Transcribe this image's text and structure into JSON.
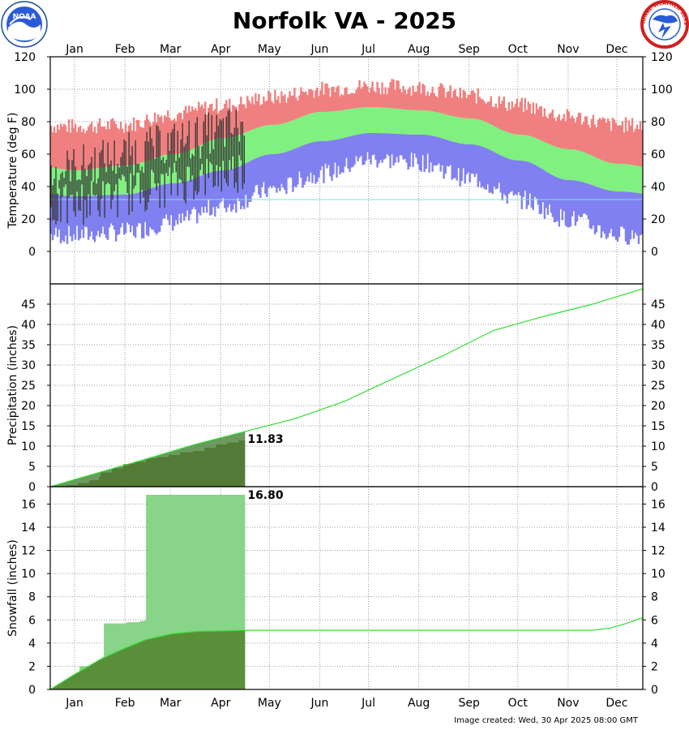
{
  "title": "Norfolk VA - 2025",
  "footer": "Image created: Wed, 30 Apr 2025 08:00 GMT",
  "months": [
    "Jan",
    "Feb",
    "Mar",
    "Apr",
    "May",
    "Jun",
    "Jul",
    "Aug",
    "Sep",
    "Oct",
    "Nov",
    "Dec"
  ],
  "colors": {
    "title": "#0a7a0a",
    "record_range": "#f08080",
    "normal_range": "#80f080",
    "record_low_range": "#8080f0",
    "observed": "#333333",
    "freezing_line": "#80e0e0",
    "normal_line": "#33dd33",
    "observed_fill": "#5a8f3a",
    "observed_dark": "#3a7a2a",
    "observed_brown": "#a08060",
    "snow_light": "#88d488"
  },
  "logos": {
    "left": "NOAA",
    "right": "NATIONAL WEATHER SERVICE"
  },
  "chart_data": [
    {
      "type": "area",
      "name": "temperature",
      "ylabel": "Temperature (deg F)",
      "ylim": [
        -20,
        120
      ],
      "yticks": [
        0,
        20,
        40,
        60,
        80,
        100,
        120
      ],
      "freezing": 32,
      "normals_by_month": {
        "record_high": [
          77,
          78,
          85,
          90,
          95,
          100,
          102,
          101,
          96,
          90,
          83,
          78
        ],
        "normal_high": [
          50,
          53,
          60,
          70,
          78,
          86,
          89,
          87,
          82,
          72,
          63,
          54
        ],
        "normal_low": [
          34,
          35,
          42,
          50,
          60,
          68,
          73,
          72,
          66,
          56,
          44,
          37
        ],
        "record_low": [
          10,
          12,
          18,
          28,
          38,
          48,
          57,
          55,
          45,
          32,
          20,
          10
        ]
      },
      "observed": {
        "through_day": 120,
        "high_start": 48,
        "high_end": 78,
        "low_start": 30,
        "low_end": 55,
        "spread": 14
      }
    },
    {
      "type": "line",
      "name": "precipitation",
      "ylabel": "Precipitation (inches)",
      "ylim": [
        0,
        50
      ],
      "yticks": [
        0,
        5,
        10,
        15,
        20,
        25,
        30,
        35,
        40,
        45
      ],
      "normal_cumulative": [
        [
          0,
          0
        ],
        [
          31,
          3.6
        ],
        [
          59,
          6.8
        ],
        [
          90,
          10.5
        ],
        [
          120,
          13.6
        ],
        [
          151,
          16.8
        ],
        [
          181,
          21.0
        ],
        [
          212,
          26.8
        ],
        [
          243,
          32.5
        ],
        [
          273,
          38.5
        ],
        [
          304,
          42.0
        ],
        [
          334,
          45.0
        ],
        [
          365,
          48.8
        ]
      ],
      "observed_cumulative": [
        [
          0,
          0
        ],
        [
          10,
          0.4
        ],
        [
          17,
          0.9
        ],
        [
          24,
          1.6
        ],
        [
          30,
          2.5
        ],
        [
          31,
          3.5
        ],
        [
          38,
          4.5
        ],
        [
          45,
          5.6
        ],
        [
          52,
          6.1
        ],
        [
          59,
          7.0
        ],
        [
          66,
          7.3
        ],
        [
          73,
          7.8
        ],
        [
          80,
          8.5
        ],
        [
          88,
          8.8
        ],
        [
          95,
          9.6
        ],
        [
          102,
          10.4
        ],
        [
          109,
          10.9
        ],
        [
          116,
          11.4
        ],
        [
          120,
          11.83
        ]
      ],
      "observed_end_day": 120,
      "annotation": "11.83"
    },
    {
      "type": "line",
      "name": "snowfall",
      "ylabel": "Snowfall (inches)",
      "ylim": [
        0,
        17.5
      ],
      "yticks": [
        0,
        2,
        4,
        6,
        8,
        10,
        12,
        14,
        16
      ],
      "normal_cumulative": [
        [
          0,
          0
        ],
        [
          15,
          1.3
        ],
        [
          31,
          2.6
        ],
        [
          45,
          3.5
        ],
        [
          59,
          4.3
        ],
        [
          75,
          4.8
        ],
        [
          90,
          5.0
        ],
        [
          120,
          5.1
        ],
        [
          334,
          5.1
        ],
        [
          345,
          5.3
        ],
        [
          355,
          5.7
        ],
        [
          365,
          6.2
        ]
      ],
      "observed_cumulative": [
        [
          0,
          0
        ],
        [
          8,
          0.3
        ],
        [
          12,
          0.6
        ],
        [
          16,
          1.1
        ],
        [
          18,
          2.0
        ],
        [
          24,
          2.0
        ],
        [
          29,
          2.0
        ],
        [
          32,
          2.8
        ],
        [
          33,
          5.7
        ],
        [
          47,
          5.8
        ],
        [
          55,
          5.9
        ],
        [
          58,
          6.0
        ],
        [
          59,
          16.8
        ],
        [
          120,
          16.8
        ]
      ],
      "observed_end_day": 120,
      "annotation": "16.80"
    }
  ]
}
